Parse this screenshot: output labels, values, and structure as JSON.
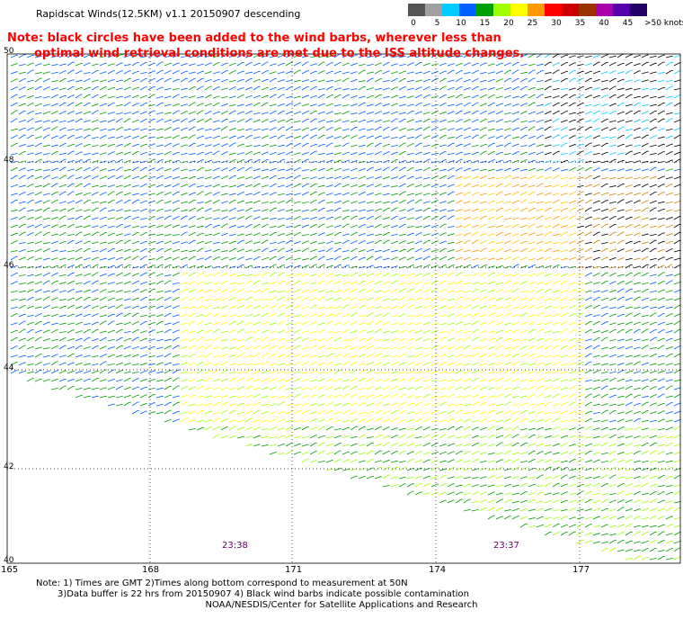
{
  "header": {
    "title": "Rapidscat Winds(12.5KM) v1.1 20150907 descending",
    "note_line1": "Note: black circles have been added to the wind barbs, wherever less than",
    "note_line2": "optimal wind retrieval conditions are met due to the ISS altitude changes."
  },
  "legend": {
    "labels": [
      "0",
      "5",
      "10",
      "15",
      "20",
      "25",
      "30",
      "35",
      "40",
      "45",
      ">50 knots"
    ],
    "colors": [
      "#555555",
      "#a0a0a0",
      "#00ccff",
      "#0060ff",
      "#00a000",
      "#a0ff00",
      "#ffff00",
      "#ff9900",
      "#ff0000",
      "#cc0000",
      "#993300",
      "#aa00aa",
      "#5500aa",
      "#220066"
    ]
  },
  "map": {
    "lat_labels": [
      "50",
      "48",
      "46",
      "44",
      "42",
      "40"
    ],
    "lon_labels": [
      "165",
      "168",
      "171",
      "174",
      "177"
    ],
    "times": [
      "23:38",
      "23:37"
    ]
  },
  "footer": {
    "note1": "Note: 1) Times are GMT 2)Times along bottom correspond to measurement at 50N",
    "note2": "3)Data buffer is 22 hrs from 20150907 4) Black wind barbs indicate possible contamination",
    "credit": "NOAA/NESDIS/Center for Satellite Applications and Research"
  }
}
